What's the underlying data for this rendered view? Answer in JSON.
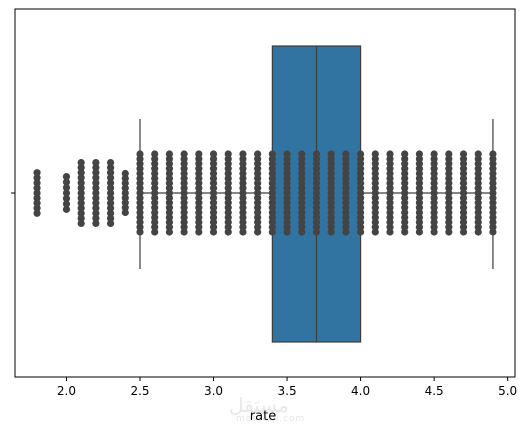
{
  "chart_data": {
    "type": "box",
    "xlabel": "rate",
    "ylabel": "",
    "xlim": [
      1.65,
      5.05
    ],
    "xticks": [
      "2.0",
      "2.5",
      "3.0",
      "3.5",
      "4.0",
      "4.5",
      "5.0"
    ],
    "box": {
      "q1": 3.4,
      "median": 3.7,
      "q3": 4.0,
      "whisker_low": 2.5,
      "whisker_high": 4.9,
      "color": "#3274a1",
      "line_color": "#3d3d3d"
    },
    "strip": {
      "color": "#444444",
      "values": [
        1.8,
        2.0,
        2.1,
        2.2,
        2.3,
        2.4,
        2.5,
        2.6,
        2.7,
        2.8,
        2.9,
        3.0,
        3.1,
        3.2,
        3.3,
        3.4,
        3.5,
        3.6,
        3.7,
        3.8,
        3.9,
        4.0,
        4.1,
        4.2,
        4.3,
        4.4,
        4.5,
        4.6,
        4.7,
        4.8,
        4.9
      ],
      "relative_spread": [
        0.52,
        0.42,
        0.78,
        0.78,
        0.78,
        0.5,
        1,
        1,
        1,
        1,
        1,
        1,
        1,
        1,
        1,
        1,
        1,
        1,
        1,
        1,
        1,
        1,
        1,
        1,
        1,
        1,
        1,
        1,
        1,
        1,
        1
      ]
    }
  },
  "watermark": {
    "arabic": "مستقل",
    "latin": "mostaql.com"
  }
}
